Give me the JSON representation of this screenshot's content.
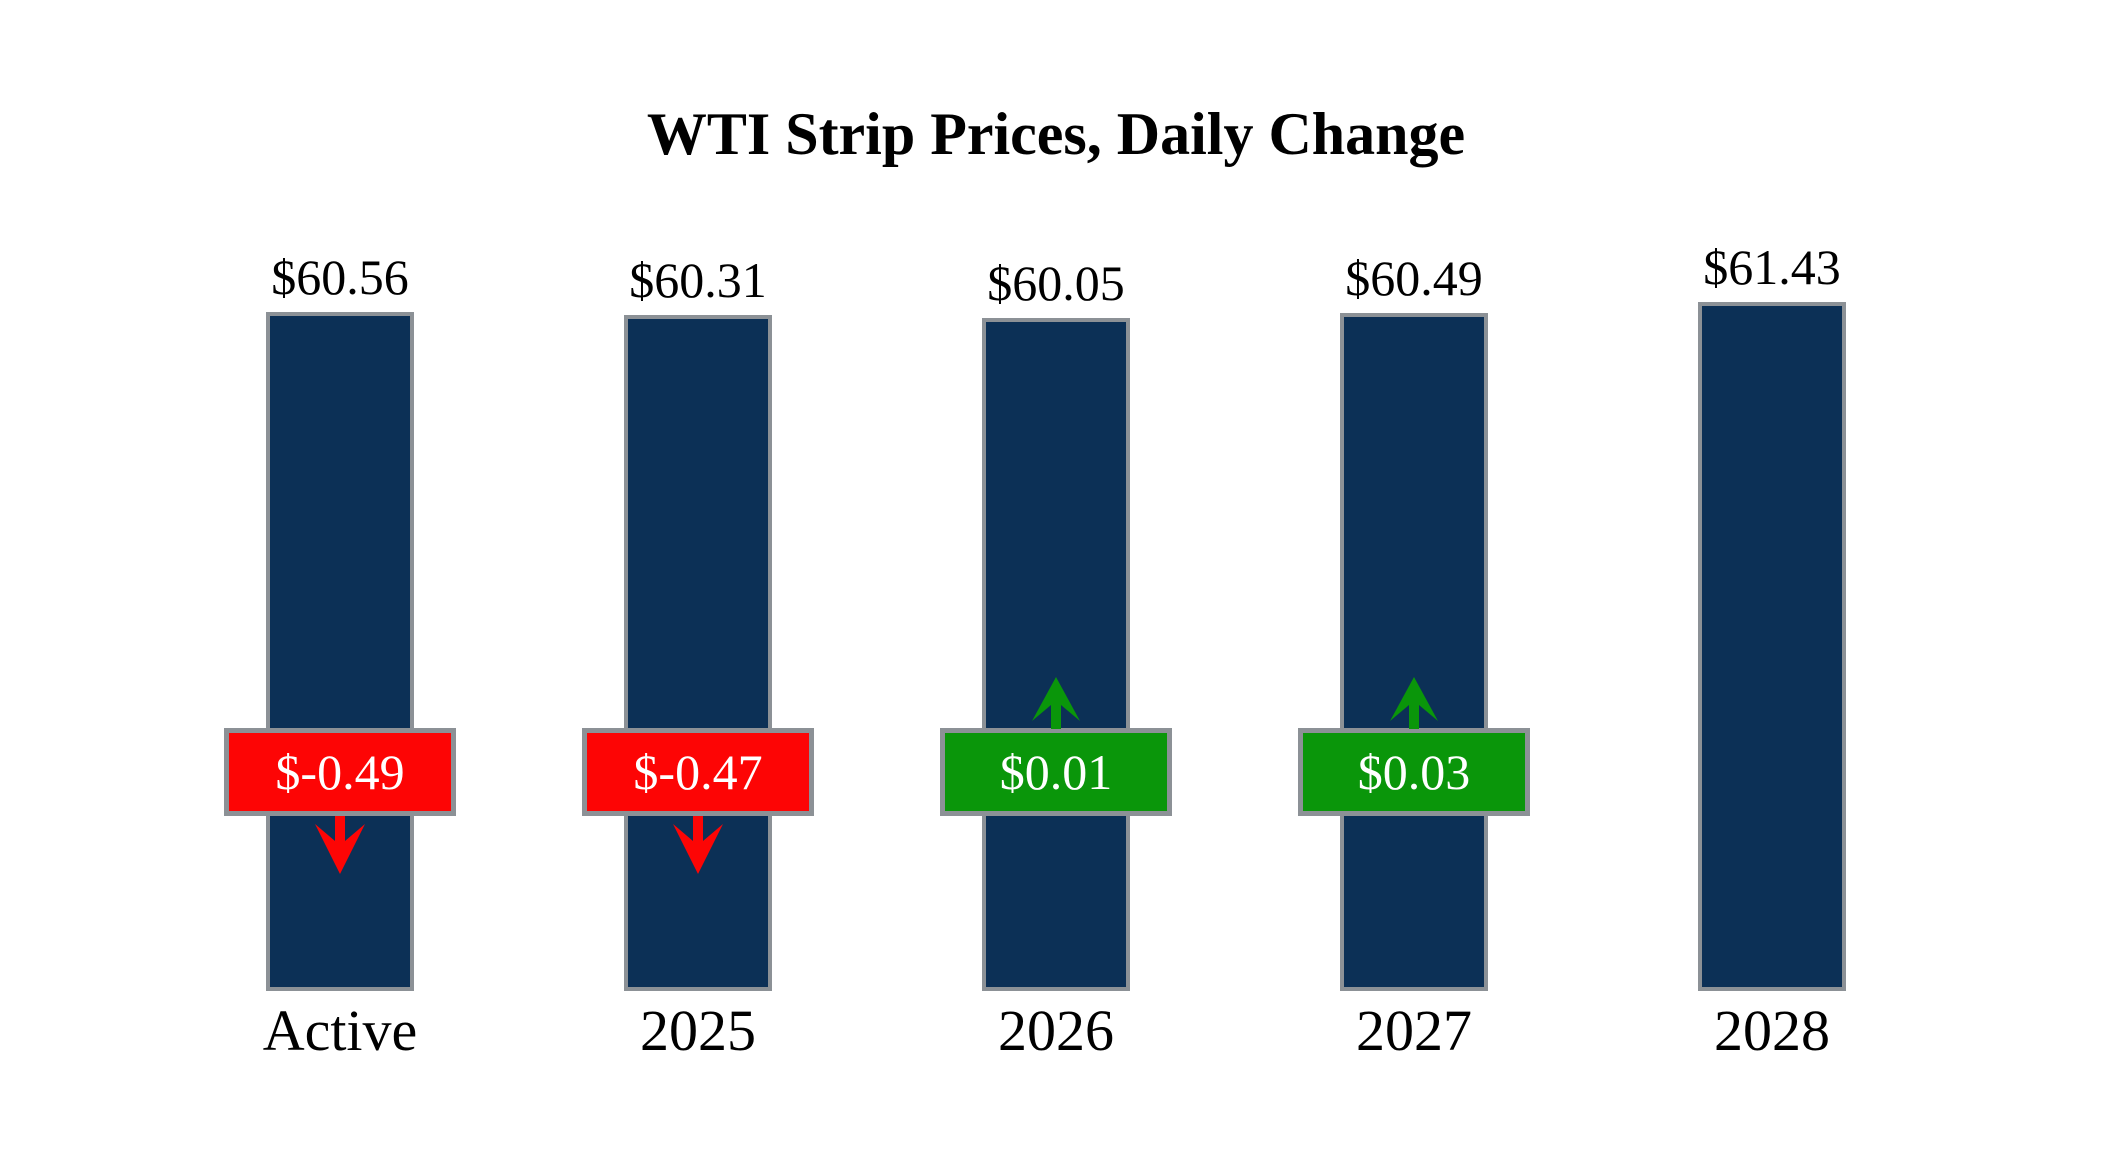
{
  "title": "WTI Strip Prices, Daily Change",
  "colors": {
    "background": "#ffffff",
    "bar_fill": "#0c3056",
    "bar_border": "#8c9196",
    "badge_border": "#8c9196",
    "badge_text": "#ffffff",
    "label_text": "#000000",
    "negative": "#fd0505",
    "positive": "#0a960a"
  },
  "chart_data": {
    "type": "bar",
    "title": "WTI Strip Prices, Daily Change",
    "categories": [
      "Active",
      "2025",
      "2026",
      "2027",
      "2028"
    ],
    "values": [
      60.56,
      60.31,
      60.05,
      60.49,
      61.43
    ],
    "ylim": [
      0,
      61.43
    ],
    "grid": false,
    "legend": false,
    "xlabel": "",
    "ylabel": "",
    "bars": [
      {
        "category": "Active",
        "value": 60.56,
        "value_label": "$60.56",
        "change": -0.49,
        "change_label": "$-0.49",
        "direction": "down"
      },
      {
        "category": "2025",
        "value": 60.31,
        "value_label": "$60.31",
        "change": -0.47,
        "change_label": "$-0.47",
        "direction": "down"
      },
      {
        "category": "2026",
        "value": 60.05,
        "value_label": "$60.05",
        "change": 0.01,
        "change_label": "$0.01",
        "direction": "up"
      },
      {
        "category": "2027",
        "value": 60.49,
        "value_label": "$60.49",
        "change": 0.03,
        "change_label": "$0.03",
        "direction": "up"
      },
      {
        "category": "2028",
        "value": 61.43,
        "value_label": "$61.43",
        "change": null,
        "change_label": null,
        "direction": "none"
      }
    ]
  }
}
